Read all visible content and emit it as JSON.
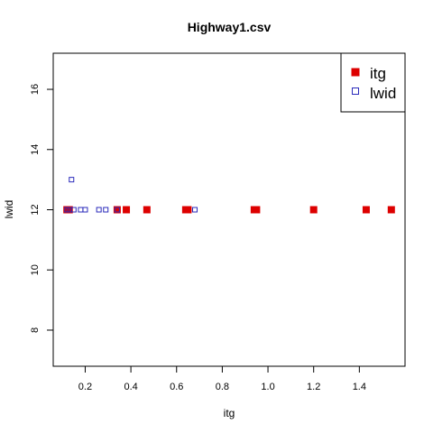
{
  "chart_data": {
    "type": "scatter",
    "title": "Highway1.csv",
    "xlabel": "itg",
    "ylabel": "lwid",
    "xlim": [
      0.06,
      1.6
    ],
    "ylim": [
      6.8,
      17.2
    ],
    "xticks": [
      0.2,
      0.4,
      0.6,
      0.8,
      1.0,
      1.2,
      1.4
    ],
    "xtick_labels": [
      "0.2",
      "0.4",
      "0.6",
      "0.8",
      "1.0",
      "1.2",
      "1.4"
    ],
    "yticks": [
      8,
      10,
      12,
      14,
      16
    ],
    "ytick_labels": [
      "8",
      "10",
      "12",
      "14",
      "16"
    ],
    "legend": {
      "position": "top-right",
      "entries": [
        {
          "label": "itg",
          "marker": "filled-square",
          "color": "#dd0000"
        },
        {
          "label": "lwid",
          "marker": "open-square",
          "color": "#2b2bbb"
        }
      ]
    },
    "series": [
      {
        "name": "itg",
        "marker": "filled-square",
        "color": "#dd0000",
        "points": [
          [
            0.12,
            12
          ],
          [
            0.13,
            12
          ],
          [
            0.34,
            12
          ],
          [
            0.38,
            12
          ],
          [
            0.47,
            12
          ],
          [
            0.64,
            12
          ],
          [
            0.65,
            12
          ],
          [
            0.94,
            12
          ],
          [
            0.95,
            12
          ],
          [
            1.2,
            12
          ],
          [
            1.43,
            12
          ],
          [
            1.54,
            12
          ]
        ]
      },
      {
        "name": "lwid",
        "marker": "open-square",
        "color": "#2b2bbb",
        "points": [
          [
            0.12,
            12
          ],
          [
            0.13,
            12
          ],
          [
            0.14,
            13
          ],
          [
            0.15,
            12
          ],
          [
            0.18,
            12
          ],
          [
            0.2,
            12
          ],
          [
            0.26,
            12
          ],
          [
            0.29,
            12
          ],
          [
            0.34,
            12
          ],
          [
            0.68,
            12
          ]
        ]
      }
    ]
  }
}
